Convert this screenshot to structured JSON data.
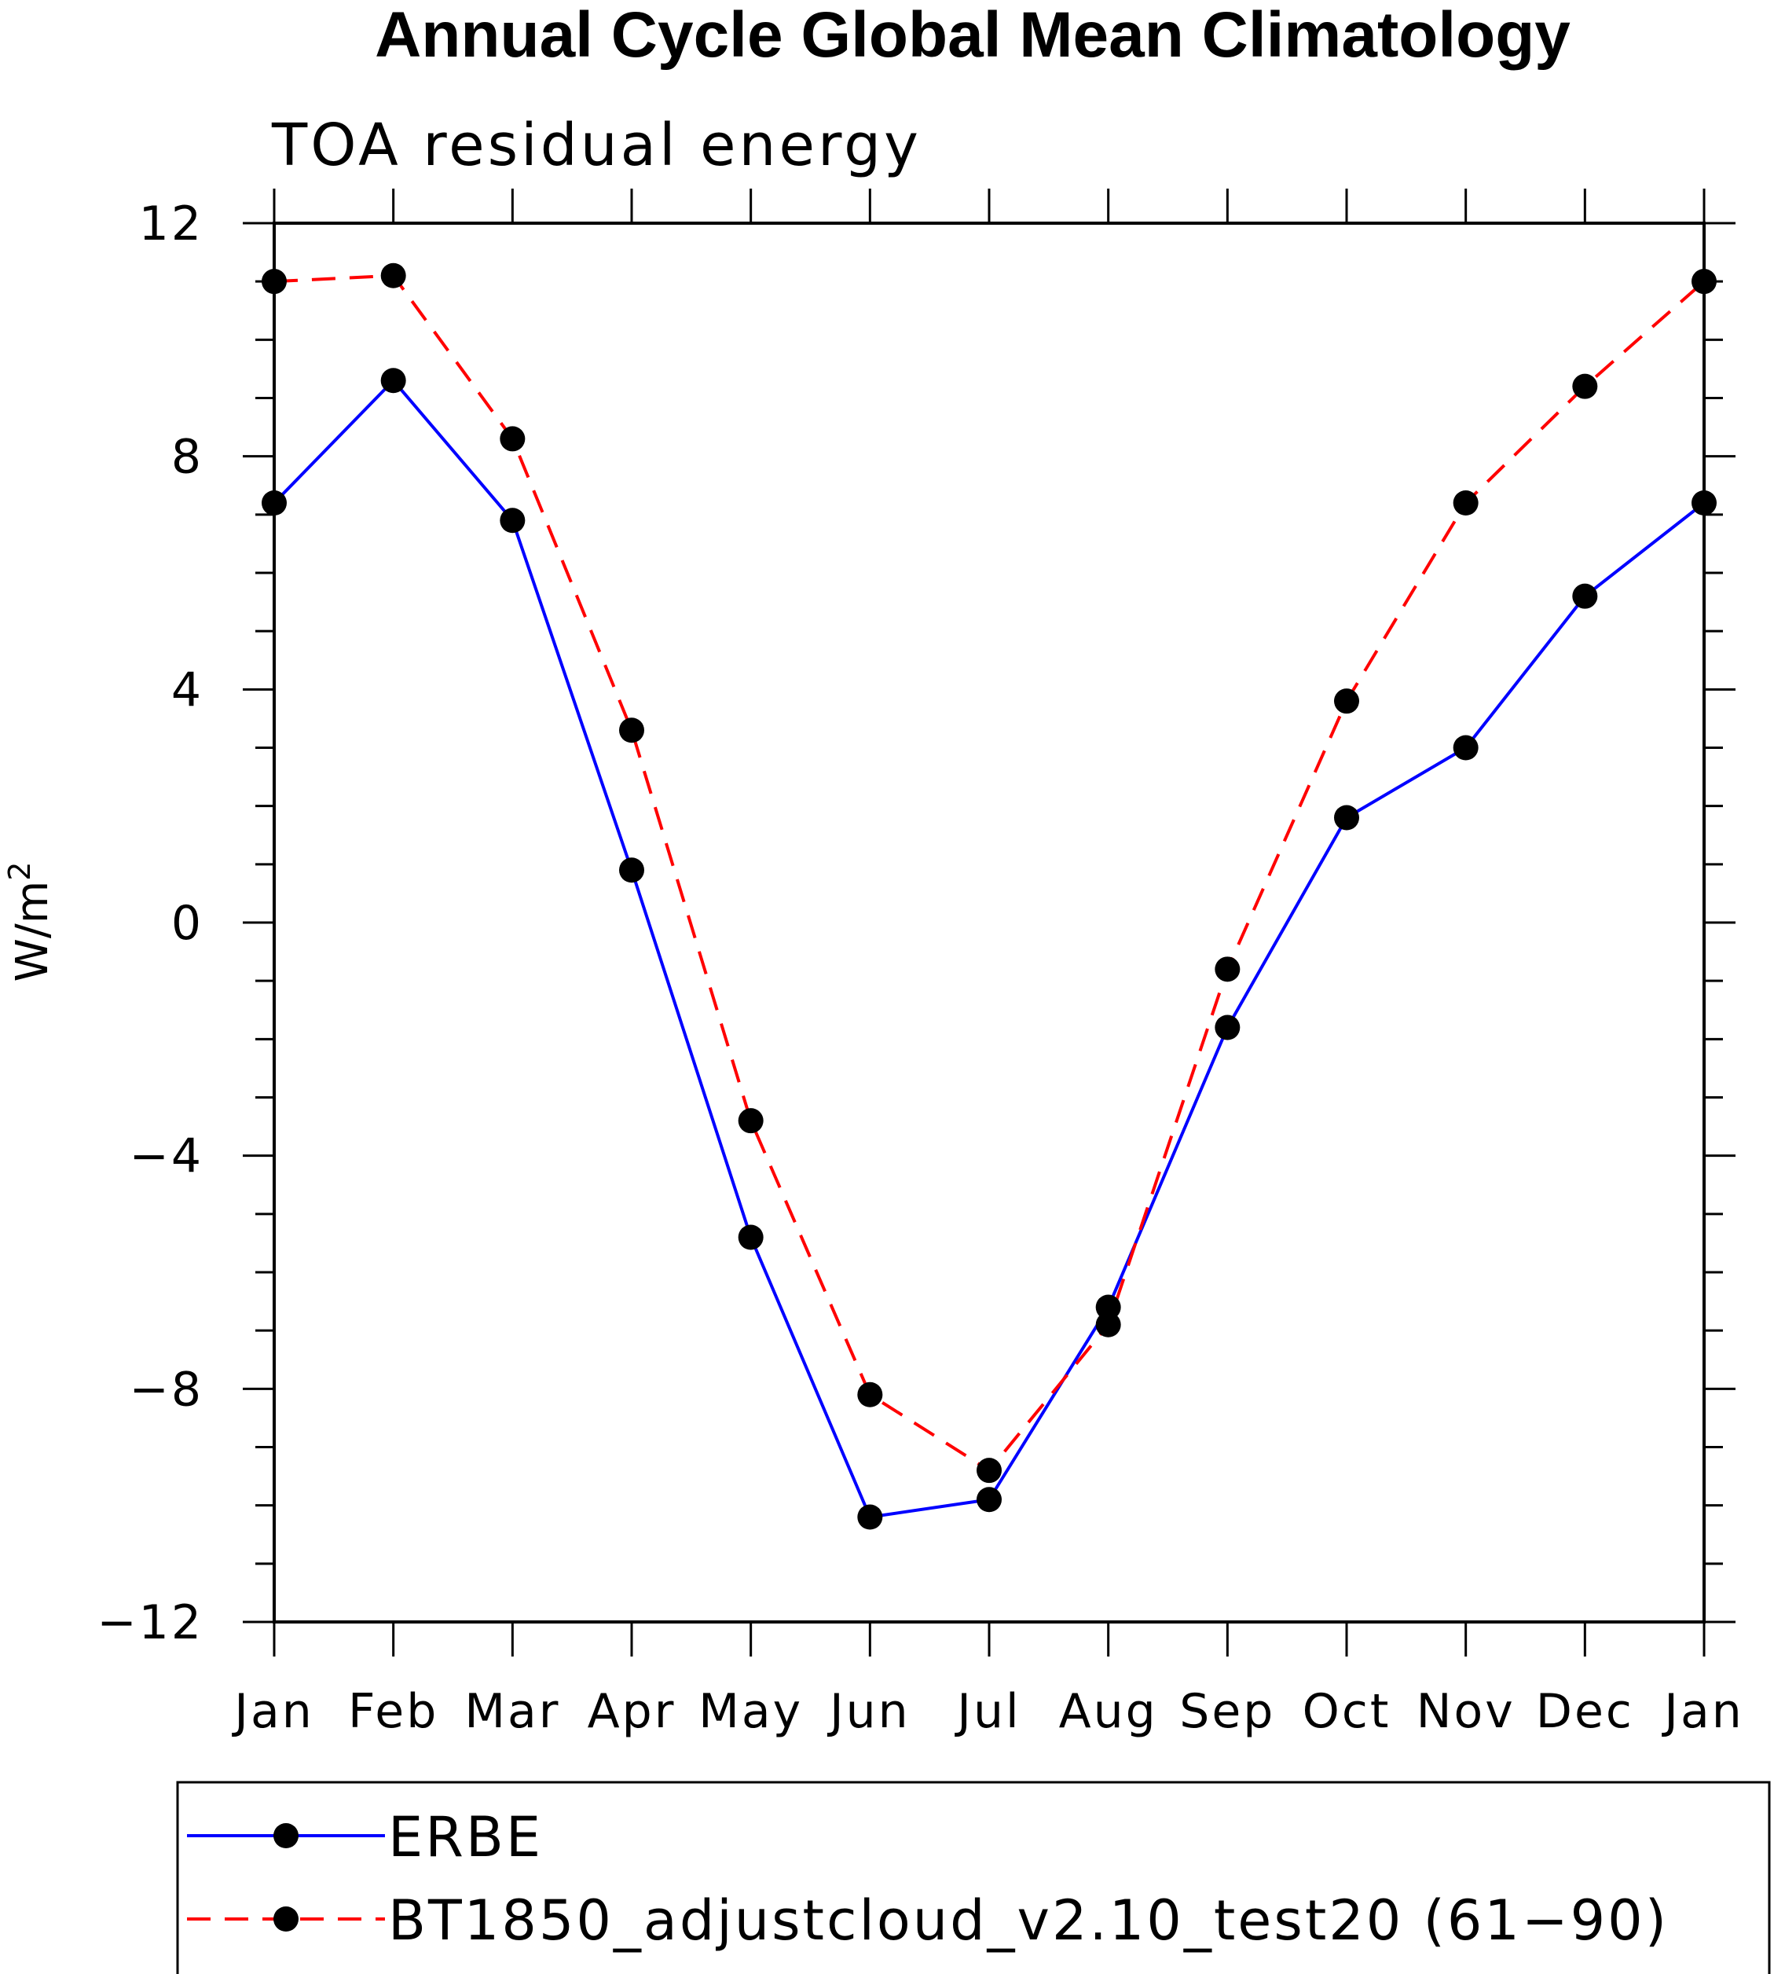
{
  "chart_data": {
    "type": "line",
    "title": "Annual Cycle Global Mean Climatology",
    "subtitle": "TOA residual energy",
    "xlabel": "",
    "ylabel": "W/m",
    "ylabel_superscript": "2",
    "categories": [
      "Jan",
      "Feb",
      "Mar",
      "Apr",
      "May",
      "Jun",
      "Jul",
      "Aug",
      "Sep",
      "Oct",
      "Nov",
      "Dec",
      "Jan"
    ],
    "ylim": [
      -12,
      12
    ],
    "yticks": [
      -12,
      -8,
      -4,
      0,
      4,
      8,
      12
    ],
    "ytick_labels": [
      "−12",
      "−8",
      "−4",
      "0",
      "4",
      "8",
      "12"
    ],
    "minor_ytick_step": 1,
    "grid": false,
    "legend_position": "bottom",
    "series": [
      {
        "name": "ERBE",
        "color": "#0000ff",
        "line_style": "solid",
        "marker": "filled-circle",
        "values": [
          7.2,
          9.3,
          6.9,
          0.9,
          -5.4,
          -10.2,
          -9.9,
          -6.6,
          -1.8,
          1.8,
          3.0,
          5.6,
          7.2
        ]
      },
      {
        "name": "BT1850_adjustcloud_v2.10_test20 (61−90)",
        "color": "#ff0000",
        "line_style": "dashed",
        "marker": "filled-circle",
        "values": [
          11.0,
          11.1,
          8.3,
          3.3,
          -3.4,
          -8.1,
          -9.4,
          -6.9,
          -0.8,
          3.8,
          7.2,
          9.2,
          11.0
        ]
      }
    ]
  }
}
